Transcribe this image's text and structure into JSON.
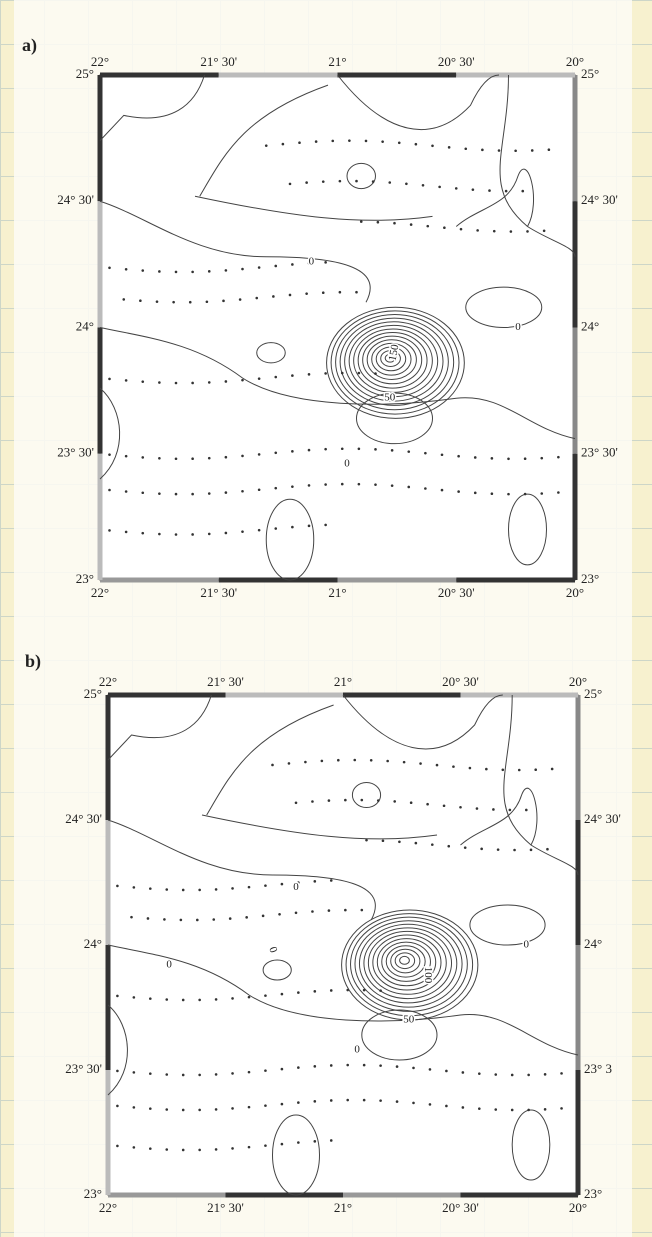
{
  "panels": [
    {
      "label": "a)",
      "top_labels": [
        "22°",
        "21° 30'",
        "21°",
        "20° 30'",
        "20°"
      ],
      "bottom_labels": [
        "22°",
        "21° 30'",
        "21°",
        "20° 30'",
        "20°"
      ],
      "left_labels": [
        "25°",
        "24° 30'",
        "24°",
        "23° 30'",
        "23°"
      ],
      "right_labels": [
        "25°",
        "24° 30'",
        "24°",
        "23° 30'",
        "23°"
      ],
      "contour_labels": [
        "150",
        "50",
        "0",
        "0",
        "0"
      ]
    },
    {
      "label": "b)",
      "top_labels": [
        "22°",
        "21° 30'",
        "21°",
        "20° 30'",
        "20°"
      ],
      "bottom_labels": [
        "22°",
        "21° 30'",
        "21°",
        "20° 30'",
        "20°"
      ],
      "left_labels": [
        "25°",
        "24° 30'",
        "24°",
        "23° 30'",
        "23°"
      ],
      "right_labels": [
        "25°",
        "24° 30'",
        "24°",
        "23° 3",
        "23°"
      ],
      "contour_labels": [
        "100",
        "50",
        "0",
        "0",
        "0",
        "0",
        "0"
      ]
    }
  ]
}
